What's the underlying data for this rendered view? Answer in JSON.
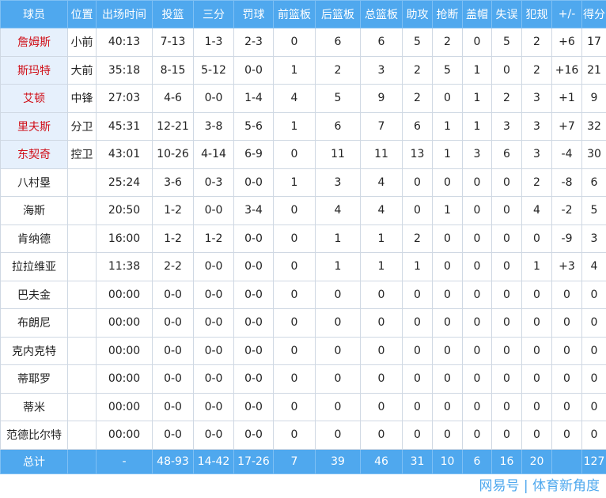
{
  "headers": [
    "球员",
    "位置",
    "出场时间",
    "投篮",
    "三分",
    "罚球",
    "前篮板",
    "后篮板",
    "总篮板",
    "助攻",
    "抢断",
    "盖帽",
    "失误",
    "犯规",
    "+/-",
    "得分"
  ],
  "players": [
    {
      "starter": true,
      "cells": [
        "詹姆斯",
        "小前",
        "40:13",
        "7-13",
        "1-3",
        "2-3",
        "0",
        "6",
        "6",
        "5",
        "2",
        "0",
        "5",
        "2",
        "+6",
        "17"
      ]
    },
    {
      "starter": true,
      "cells": [
        "斯玛特",
        "大前",
        "35:18",
        "8-15",
        "5-12",
        "0-0",
        "1",
        "2",
        "3",
        "2",
        "5",
        "1",
        "0",
        "2",
        "+16",
        "21"
      ]
    },
    {
      "starter": true,
      "cells": [
        "艾顿",
        "中锋",
        "27:03",
        "4-6",
        "0-0",
        "1-4",
        "4",
        "5",
        "9",
        "2",
        "0",
        "1",
        "2",
        "3",
        "+1",
        "9"
      ]
    },
    {
      "starter": true,
      "cells": [
        "里夫斯",
        "分卫",
        "45:31",
        "12-21",
        "3-8",
        "5-6",
        "1",
        "6",
        "7",
        "6",
        "1",
        "1",
        "3",
        "3",
        "+7",
        "32"
      ]
    },
    {
      "starter": true,
      "cells": [
        "东契奇",
        "控卫",
        "43:01",
        "10-26",
        "4-14",
        "6-9",
        "0",
        "11",
        "11",
        "13",
        "1",
        "3",
        "6",
        "3",
        "-4",
        "30"
      ]
    },
    {
      "starter": false,
      "cells": [
        "八村塁",
        "",
        "25:24",
        "3-6",
        "0-3",
        "0-0",
        "1",
        "3",
        "4",
        "0",
        "0",
        "0",
        "0",
        "2",
        "-8",
        "6"
      ]
    },
    {
      "starter": false,
      "cells": [
        "海斯",
        "",
        "20:50",
        "1-2",
        "0-0",
        "3-4",
        "0",
        "4",
        "4",
        "0",
        "1",
        "0",
        "0",
        "4",
        "-2",
        "5"
      ]
    },
    {
      "starter": false,
      "cells": [
        "肯纳德",
        "",
        "16:00",
        "1-2",
        "1-2",
        "0-0",
        "0",
        "1",
        "1",
        "2",
        "0",
        "0",
        "0",
        "0",
        "-9",
        "3"
      ]
    },
    {
      "starter": false,
      "cells": [
        "拉拉维亚",
        "",
        "11:38",
        "2-2",
        "0-0",
        "0-0",
        "0",
        "1",
        "1",
        "1",
        "0",
        "0",
        "0",
        "1",
        "+3",
        "4"
      ]
    },
    {
      "starter": false,
      "cells": [
        "巴夫金",
        "",
        "00:00",
        "0-0",
        "0-0",
        "0-0",
        "0",
        "0",
        "0",
        "0",
        "0",
        "0",
        "0",
        "0",
        "0",
        "0"
      ]
    },
    {
      "starter": false,
      "cells": [
        "布朗尼",
        "",
        "00:00",
        "0-0",
        "0-0",
        "0-0",
        "0",
        "0",
        "0",
        "0",
        "0",
        "0",
        "0",
        "0",
        "0",
        "0"
      ]
    },
    {
      "starter": false,
      "cells": [
        "克内克特",
        "",
        "00:00",
        "0-0",
        "0-0",
        "0-0",
        "0",
        "0",
        "0",
        "0",
        "0",
        "0",
        "0",
        "0",
        "0",
        "0"
      ]
    },
    {
      "starter": false,
      "cells": [
        "蒂耶罗",
        "",
        "00:00",
        "0-0",
        "0-0",
        "0-0",
        "0",
        "0",
        "0",
        "0",
        "0",
        "0",
        "0",
        "0",
        "0",
        "0"
      ]
    },
    {
      "starter": false,
      "cells": [
        "蒂米",
        "",
        "00:00",
        "0-0",
        "0-0",
        "0-0",
        "0",
        "0",
        "0",
        "0",
        "0",
        "0",
        "0",
        "0",
        "0",
        "0"
      ]
    },
    {
      "starter": false,
      "cells": [
        "范德比尔特",
        "",
        "00:00",
        "0-0",
        "0-0",
        "0-0",
        "0",
        "0",
        "0",
        "0",
        "0",
        "0",
        "0",
        "0",
        "0",
        "0"
      ]
    }
  ],
  "totals": [
    "总计",
    "",
    "-",
    "48-93",
    "14-42",
    "17-26",
    "7",
    "39",
    "46",
    "31",
    "10",
    "6",
    "16",
    "20",
    "",
    "127"
  ],
  "watermark": "网易号 | 体育新角度",
  "colors": {
    "header_bg": "#4fa8ee",
    "starter_bg": "#e6f0fc",
    "starter_text": "#d0101a"
  }
}
